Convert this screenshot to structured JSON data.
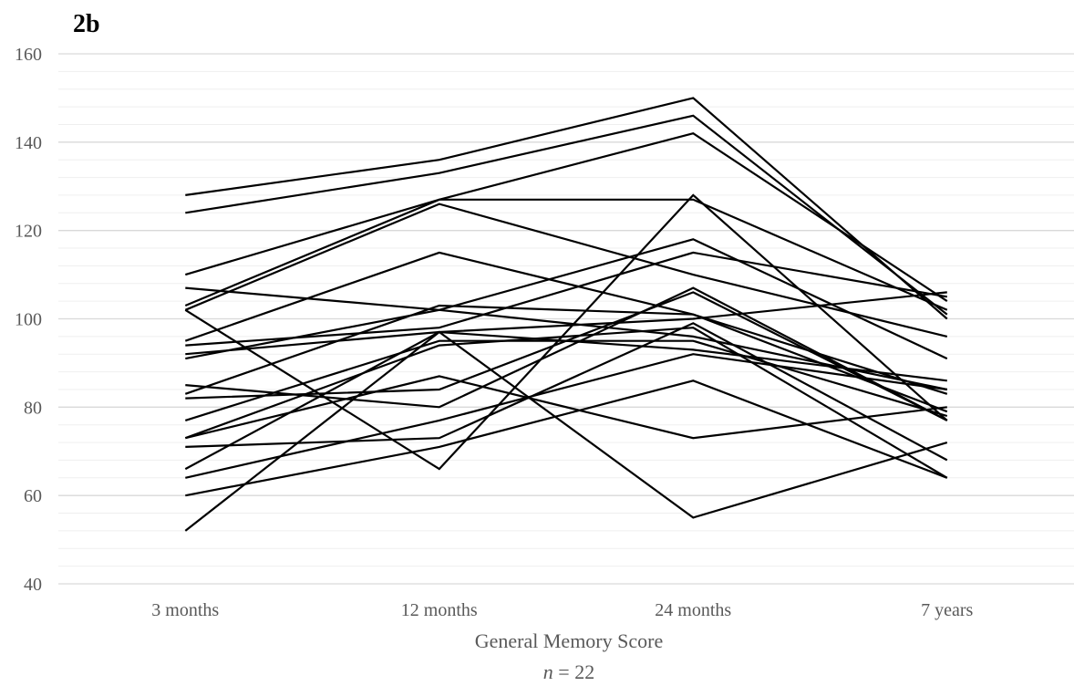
{
  "chart_data": {
    "type": "line",
    "title": "2b",
    "xlabel": "General Memory Score",
    "xlabel_sub_var": "n",
    "xlabel_sub_rest": " = 22",
    "categories": [
      "3 months",
      "12 months",
      "24 months",
      "7 years"
    ],
    "ylim": [
      40,
      160
    ],
    "y_major_ticks": [
      40,
      60,
      80,
      100,
      120,
      140,
      160
    ],
    "y_minor_step": 4,
    "grid": true,
    "legend": "none",
    "line_color": "#000000",
    "series": [
      {
        "values": [
          128,
          136,
          150,
          100
        ]
      },
      {
        "values": [
          124,
          133,
          146,
          101
        ]
      },
      {
        "values": [
          110,
          127,
          142,
          104
        ]
      },
      {
        "values": [
          103,
          127,
          127,
          102
        ]
      },
      {
        "values": [
          102,
          126,
          110,
          96
        ]
      },
      {
        "values": [
          95,
          115,
          101,
          83
        ]
      },
      {
        "values": [
          91,
          102,
          118,
          91
        ]
      },
      {
        "values": [
          107,
          102,
          96,
          84
        ]
      },
      {
        "values": [
          102,
          66,
          128,
          77
        ]
      },
      {
        "values": [
          94,
          98,
          115,
          105
        ]
      },
      {
        "values": [
          92,
          97,
          100,
          106
        ]
      },
      {
        "values": [
          85,
          80,
          107,
          77
        ]
      },
      {
        "values": [
          83,
          103,
          101,
          79
        ]
      },
      {
        "values": [
          82,
          84,
          106,
          77
        ]
      },
      {
        "values": [
          77,
          95,
          95,
          78
        ]
      },
      {
        "values": [
          73,
          94,
          98,
          64
        ]
      },
      {
        "values": [
          73,
          87,
          73,
          80
        ]
      },
      {
        "values": [
          71,
          73,
          99,
          68
        ]
      },
      {
        "values": [
          66,
          97,
          93,
          86
        ]
      },
      {
        "values": [
          64,
          77,
          92,
          84
        ]
      },
      {
        "values": [
          60,
          71,
          86,
          64
        ]
      },
      {
        "values": [
          52,
          97,
          55,
          72
        ]
      }
    ]
  },
  "colors": {
    "major_grid": "#d9d9d9",
    "minor_grid": "#efefef",
    "tick_text": "#595959",
    "line": "#000000"
  }
}
